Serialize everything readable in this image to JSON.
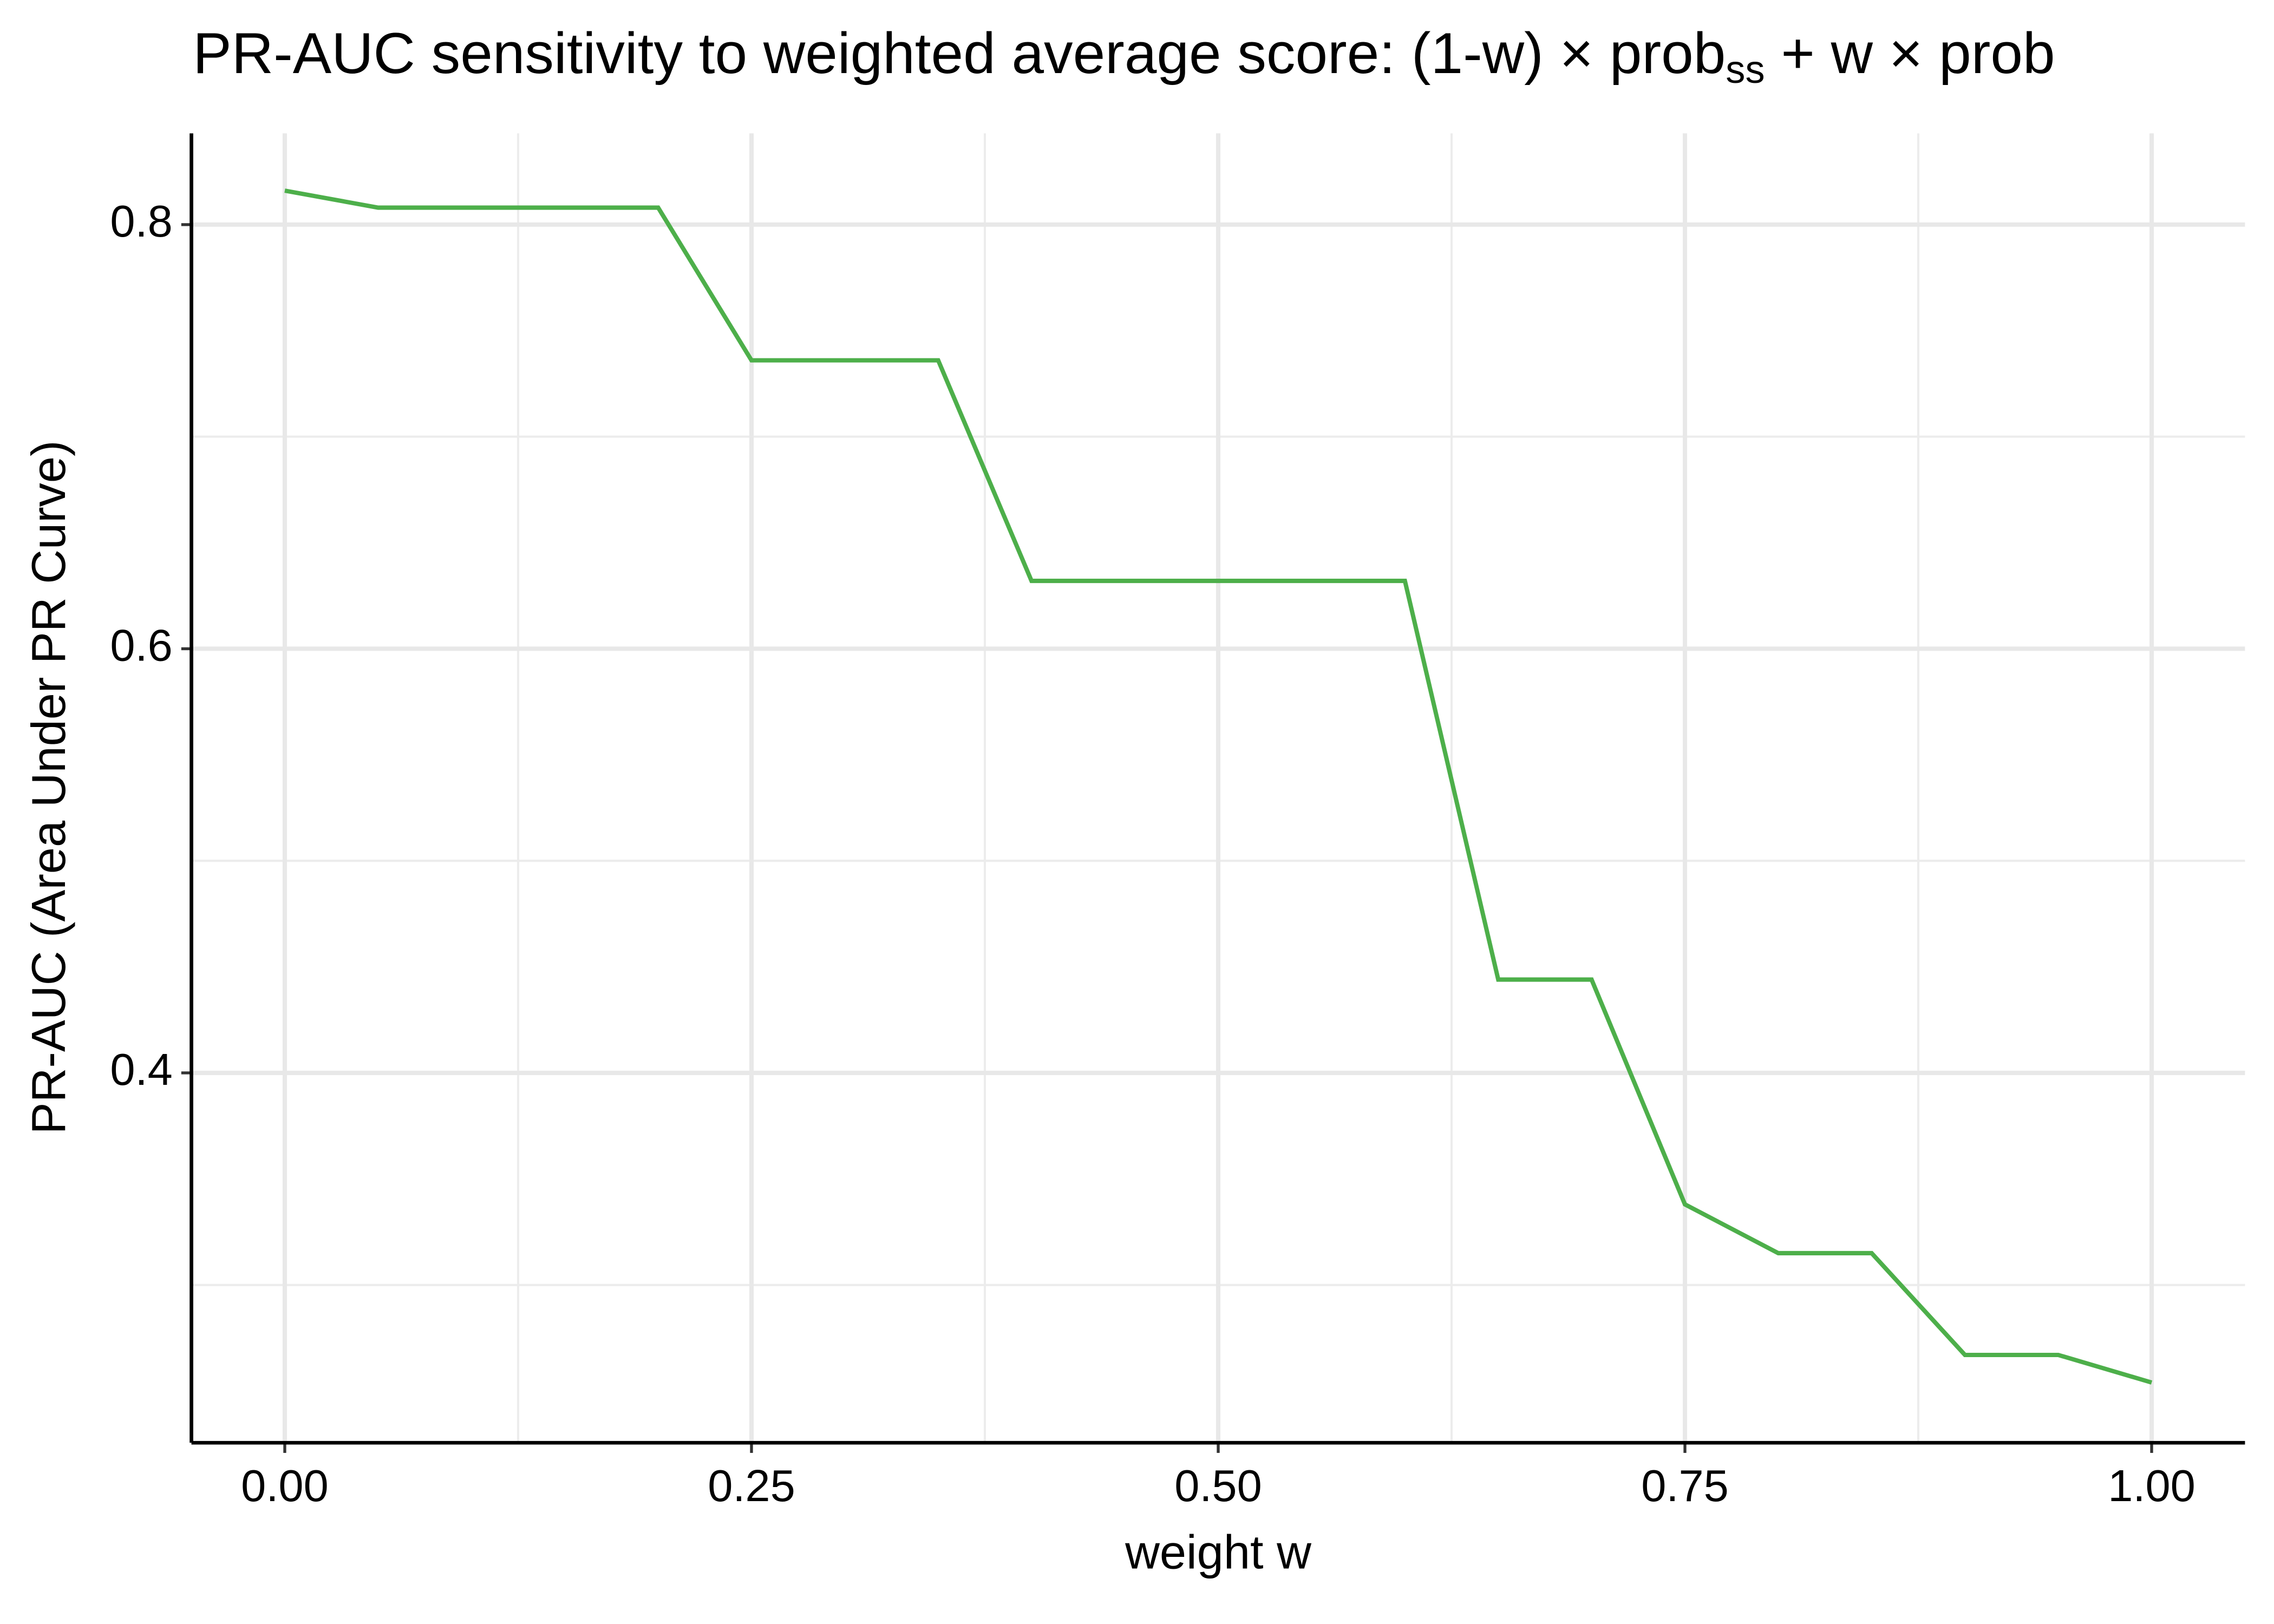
{
  "chart_data": {
    "type": "line",
    "title": {
      "parts": [
        {
          "text": "PR-AUC sensitivity to weighted average score: (1-w) × prob"
        },
        {
          "text": "ss",
          "sub": true
        },
        {
          "text": " + w × prob"
        }
      ]
    },
    "x_label": "weight w",
    "y_label": "PR-AUC (Area Under PR Curve)",
    "x": [
      0,
      0.05,
      0.1,
      0.15,
      0.2,
      0.25,
      0.3,
      0.35,
      0.4,
      0.45,
      0.5,
      0.55,
      0.6,
      0.65,
      0.7,
      0.75,
      0.8,
      0.85,
      0.9,
      0.95,
      1.0
    ],
    "series": [
      {
        "color": "#4daf4a",
        "values": [
          0.816,
          0.808,
          0.808,
          0.808,
          0.808,
          0.736,
          0.736,
          0.736,
          0.632,
          0.632,
          0.632,
          0.632,
          0.632,
          0.444,
          0.444,
          0.338,
          0.315,
          0.315,
          0.267,
          0.267,
          0.254
        ]
      }
    ],
    "xlim": [
      -0.05,
      1.05
    ],
    "ylim": [
      0.2256,
      0.843
    ],
    "xticks": [
      {
        "value": 0,
        "label": "0.00"
      },
      {
        "value": 0.25,
        "label": "0.25"
      },
      {
        "value": 0.5,
        "label": "0.50"
      },
      {
        "value": 0.75,
        "label": "0.75"
      },
      {
        "value": 1.0,
        "label": "1.00"
      }
    ],
    "yticks": [
      0.4,
      0.6,
      0.8
    ],
    "x_minor_grid": [
      0.125,
      0.375,
      0.625,
      0.875
    ],
    "y_minor_grid": [
      0.3,
      0.5,
      0.7
    ],
    "grid": true
  }
}
